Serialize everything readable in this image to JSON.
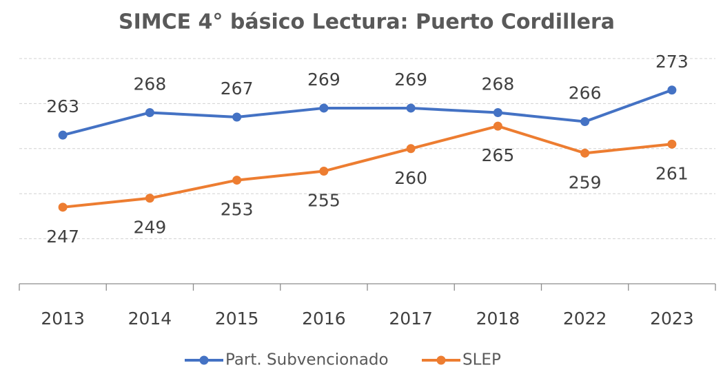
{
  "chart_data": {
    "type": "line",
    "title": "SIMCE 4° básico Lectura: Puerto Cordillera",
    "categories": [
      "2013",
      "2014",
      "2015",
      "2016",
      "2017",
      "2018",
      "2022",
      "2023"
    ],
    "series": [
      {
        "name": "Part. Subvencionado",
        "color": "#4472c4",
        "values": [
          263,
          268,
          267,
          269,
          269,
          268,
          266,
          273
        ]
      },
      {
        "name": "SLEP",
        "color": "#ed7d31",
        "values": [
          247,
          249,
          253,
          255,
          260,
          265,
          259,
          261
        ]
      }
    ],
    "ylim": [
      230,
      280
    ],
    "yticks": [
      240,
      250,
      260,
      270,
      280
    ],
    "grid": true
  }
}
